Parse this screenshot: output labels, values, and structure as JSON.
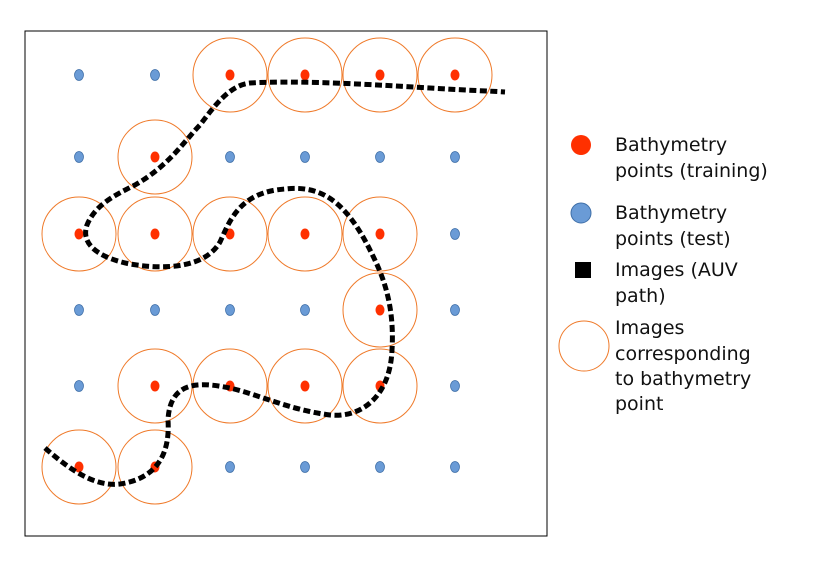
{
  "colors": {
    "training_point": "#ff3000",
    "test_point": "#6a9bd6",
    "test_point_stroke": "#3f6fa8",
    "image_circle": "#ef7a2a",
    "auv_path": "#000000",
    "frame": "#000000"
  },
  "grid": {
    "columns": 6,
    "rows": 6,
    "training_cells": [
      [
        0,
        2
      ],
      [
        0,
        3
      ],
      [
        0,
        4
      ],
      [
        0,
        5
      ],
      [
        1,
        1
      ],
      [
        2,
        0
      ],
      [
        2,
        1
      ],
      [
        2,
        2
      ],
      [
        2,
        3
      ],
      [
        2,
        4
      ],
      [
        3,
        4
      ],
      [
        4,
        1
      ],
      [
        4,
        2
      ],
      [
        4,
        3
      ],
      [
        4,
        4
      ],
      [
        5,
        0
      ],
      [
        5,
        1
      ]
    ]
  },
  "legend": {
    "training": [
      "Bathymetry",
      "points (training)"
    ],
    "test": [
      "Bathymetry",
      "points (test)"
    ],
    "auv": [
      "Images (AUV",
      "path)"
    ],
    "images": [
      "Images",
      "corresponding",
      "to bathymetry",
      "point"
    ]
  }
}
